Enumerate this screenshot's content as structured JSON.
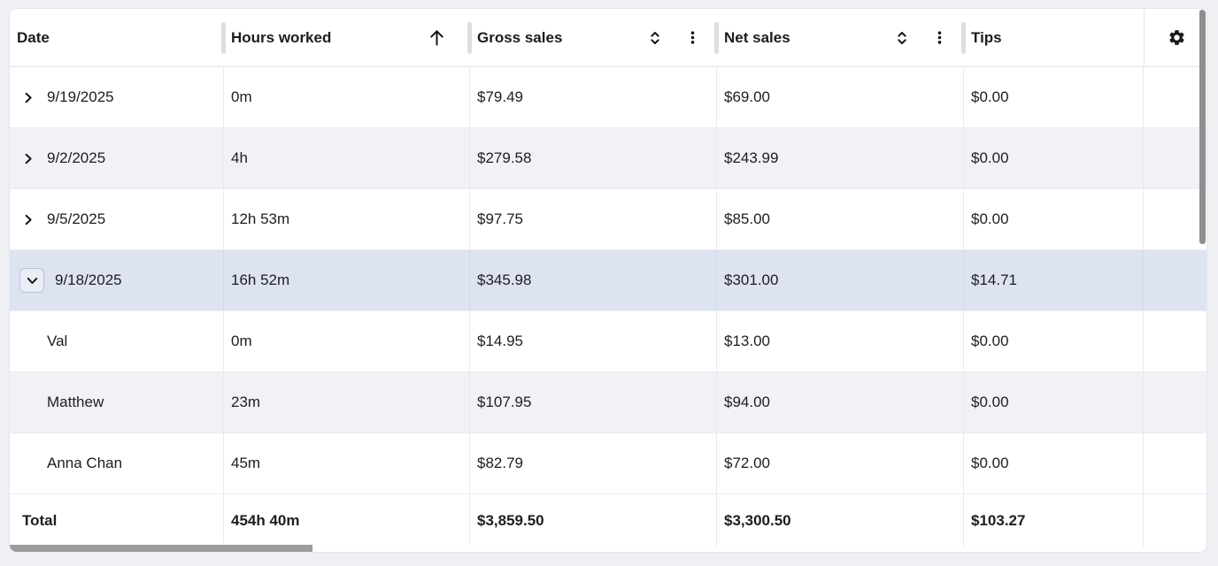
{
  "header": {
    "columns": [
      {
        "id": "date",
        "label": "Date"
      },
      {
        "id": "hours",
        "label": "Hours worked",
        "sort": "asc"
      },
      {
        "id": "gross",
        "label": "Gross sales",
        "sortable": true,
        "menu": true
      },
      {
        "id": "net",
        "label": "Net sales",
        "sortable": true,
        "menu": true
      },
      {
        "id": "tips",
        "label": "Tips"
      }
    ],
    "settings_icon": "gear-icon"
  },
  "rows": [
    {
      "kind": "group",
      "expanded": false,
      "shade": "white",
      "cells": {
        "date": "9/19/2025",
        "hours": "0m",
        "gross": "$79.49",
        "net": "$69.00",
        "tips": "$0.00"
      }
    },
    {
      "kind": "group",
      "expanded": false,
      "shade": "alt",
      "cells": {
        "date": "9/2/2025",
        "hours": "4h",
        "gross": "$279.58",
        "net": "$243.99",
        "tips": "$0.00"
      }
    },
    {
      "kind": "group",
      "expanded": false,
      "shade": "white",
      "cells": {
        "date": "9/5/2025",
        "hours": "12h 53m",
        "gross": "$97.75",
        "net": "$85.00",
        "tips": "$0.00"
      }
    },
    {
      "kind": "group",
      "expanded": true,
      "shade": "selected",
      "cells": {
        "date": "9/18/2025",
        "hours": "16h 52m",
        "gross": "$345.98",
        "net": "$301.00",
        "tips": "$14.71"
      }
    },
    {
      "kind": "child",
      "shade": "white",
      "cells": {
        "date": "Val",
        "hours": "0m",
        "gross": "$14.95",
        "net": "$13.00",
        "tips": "$0.00"
      }
    },
    {
      "kind": "child",
      "shade": "alt",
      "cells": {
        "date": "Matthew",
        "hours": "23m",
        "gross": "$107.95",
        "net": "$94.00",
        "tips": "$0.00"
      }
    },
    {
      "kind": "child",
      "shade": "white",
      "cells": {
        "date": "Anna Chan",
        "hours": "45m",
        "gross": "$82.79",
        "net": "$72.00",
        "tips": "$0.00"
      }
    }
  ],
  "total": {
    "label": "Total",
    "hours": "454h 40m",
    "gross": "$3,859.50",
    "net": "$3,300.50",
    "tips": "$103.27"
  },
  "colors": {
    "page_bg": "#eef0f4",
    "selected_row_bg": "#dde3f0",
    "alt_row_bg": "#f1f2f6",
    "expander_border": "#b7c4dc",
    "scrollbar_thumb": "#9c9c9c"
  }
}
